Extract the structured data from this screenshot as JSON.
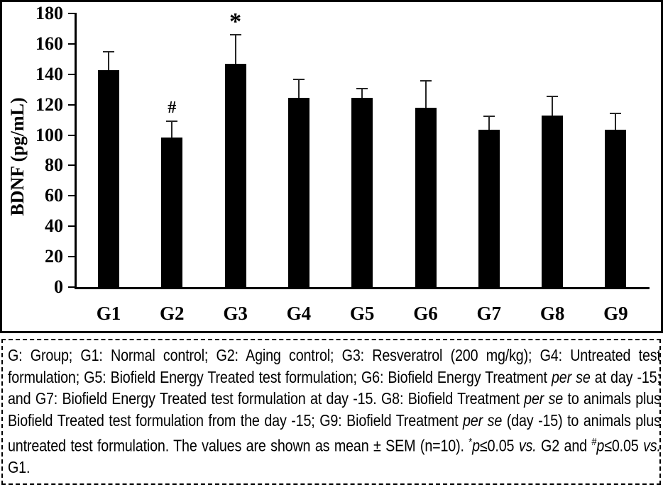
{
  "chart_data": {
    "type": "bar",
    "title": "",
    "xlabel": "",
    "ylabel": "BDNF (pg/mL)",
    "categories": [
      "G1",
      "G2",
      "G3",
      "G4",
      "G5",
      "G6",
      "G7",
      "G8",
      "G9"
    ],
    "values": [
      142.5,
      98.5,
      147,
      124.5,
      124.5,
      118,
      103.5,
      113,
      103.5
    ],
    "errors": [
      13,
      11,
      19.5,
      12.5,
      6.5,
      18,
      9.5,
      13,
      11
    ],
    "error_direction": "plus-only",
    "annotations": [
      {
        "category": "G2",
        "symbol": "#"
      },
      {
        "category": "G3",
        "symbol": "*"
      }
    ],
    "ylim": [
      0,
      180
    ],
    "yticks": [
      0,
      20,
      40,
      60,
      80,
      100,
      120,
      140,
      160,
      180
    ],
    "grid": false,
    "legend": "none",
    "bar_color": "#000000"
  },
  "caption": {
    "segments": [
      {
        "text": "G: Group; G1: Normal control; G2: Aging control; G3: Resveratrol (200 mg/kg); G4: Untreated test formulation; G5: Biofield Energy Treated test formulation; G6: Biofield Energy Treatment "
      },
      {
        "text": "per se",
        "style": "italic"
      },
      {
        "text": " at day -15; and G7: Biofield Energy Treated test formulation at day -15. G8: Biofield Treatment "
      },
      {
        "text": "per se",
        "style": "italic"
      },
      {
        "text": " to animals plus Biofield Treated test formulation from the day -15; G9: Biofield Treatment "
      },
      {
        "text": "per se",
        "style": "italic"
      },
      {
        "text": " (day -15) to animals plus untreated test formulation. The values are shown as mean ± SEM (n=10). "
      },
      {
        "text": "*",
        "style": "sup"
      },
      {
        "text": "p",
        "style": "italic"
      },
      {
        "text": "≤0.05 "
      },
      {
        "text": "vs.",
        "style": "italic"
      },
      {
        "text": " G2 and "
      },
      {
        "text": "#",
        "style": "sup"
      },
      {
        "text": "p",
        "style": "italic"
      },
      {
        "text": "≤0.05 "
      },
      {
        "text": "vs.",
        "style": "italic"
      },
      {
        "text": " G1."
      }
    ]
  }
}
